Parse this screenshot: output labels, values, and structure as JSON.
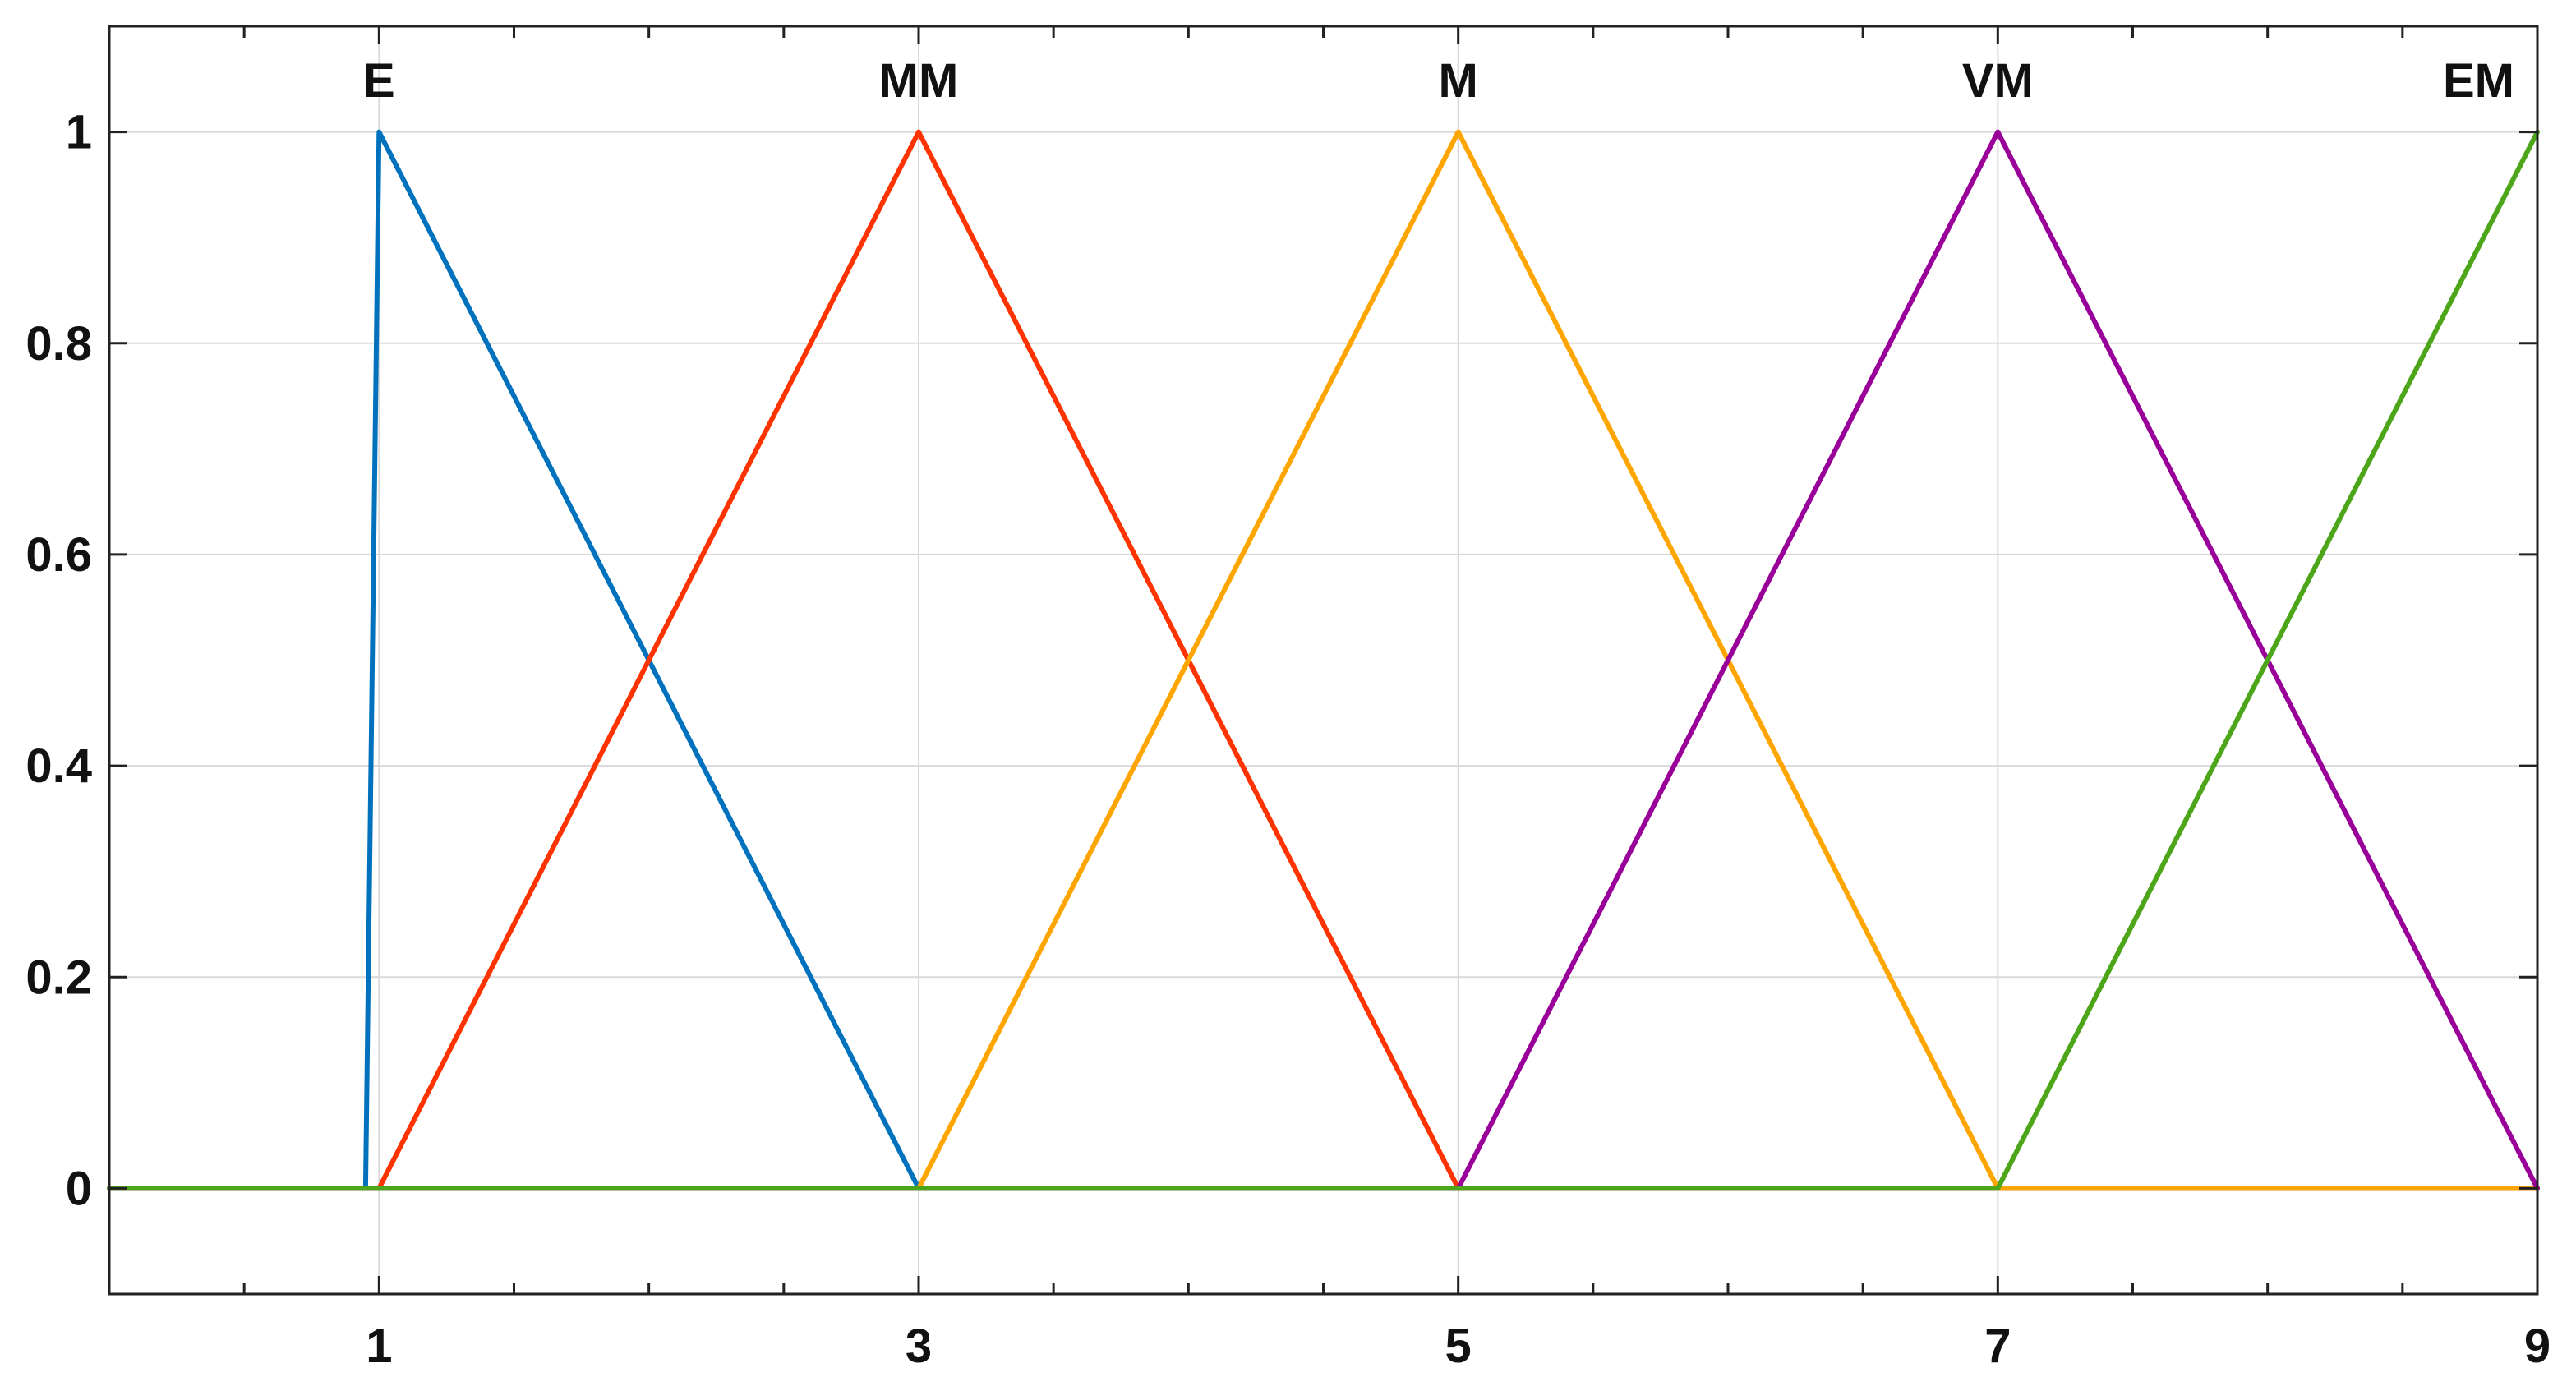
{
  "chart_data": {
    "type": "line",
    "title": "",
    "xlabel": "",
    "ylabel": "",
    "xlim": [
      0,
      9
    ],
    "ylim": [
      -0.1,
      1.1
    ],
    "grid": true,
    "x_ticks": [
      1,
      3,
      5,
      7,
      9
    ],
    "x_tick_labels": [
      "1",
      "3",
      "5",
      "7",
      "9"
    ],
    "x_minor_step": 0.5,
    "y_ticks": [
      0,
      0.2,
      0.4,
      0.6,
      0.8,
      1
    ],
    "y_tick_labels": [
      "0",
      "0.2",
      "0.4",
      "0.6",
      "0.8",
      "1"
    ],
    "baseline_color": "#888888",
    "series": [
      {
        "name": "E",
        "color": "#0072BD",
        "x": [
          0,
          0.95,
          1,
          3,
          9
        ],
        "y": [
          0,
          0,
          1,
          0,
          0
        ]
      },
      {
        "name": "MM",
        "color": "#FF3300",
        "x": [
          0,
          1,
          3,
          5,
          9
        ],
        "y": [
          0,
          0,
          1,
          0,
          0
        ]
      },
      {
        "name": "M",
        "color": "#FFA500",
        "x": [
          0,
          3,
          5,
          7,
          9
        ],
        "y": [
          0,
          0,
          1,
          0,
          0
        ]
      },
      {
        "name": "VM",
        "color": "#990099",
        "x": [
          0,
          5,
          7,
          9
        ],
        "y": [
          0,
          0,
          1,
          0
        ]
      },
      {
        "name": "EM",
        "color": "#4DA619",
        "x": [
          0,
          7,
          9
        ],
        "y": [
          0,
          0,
          1
        ]
      }
    ],
    "annotations": [
      {
        "text": "E",
        "x": 1,
        "y": 1
      },
      {
        "text": "MM",
        "x": 3,
        "y": 1
      },
      {
        "text": "M",
        "x": 5,
        "y": 1
      },
      {
        "text": "VM",
        "x": 7,
        "y": 1
      },
      {
        "text": "EM",
        "x": 9,
        "y": 1
      }
    ]
  }
}
